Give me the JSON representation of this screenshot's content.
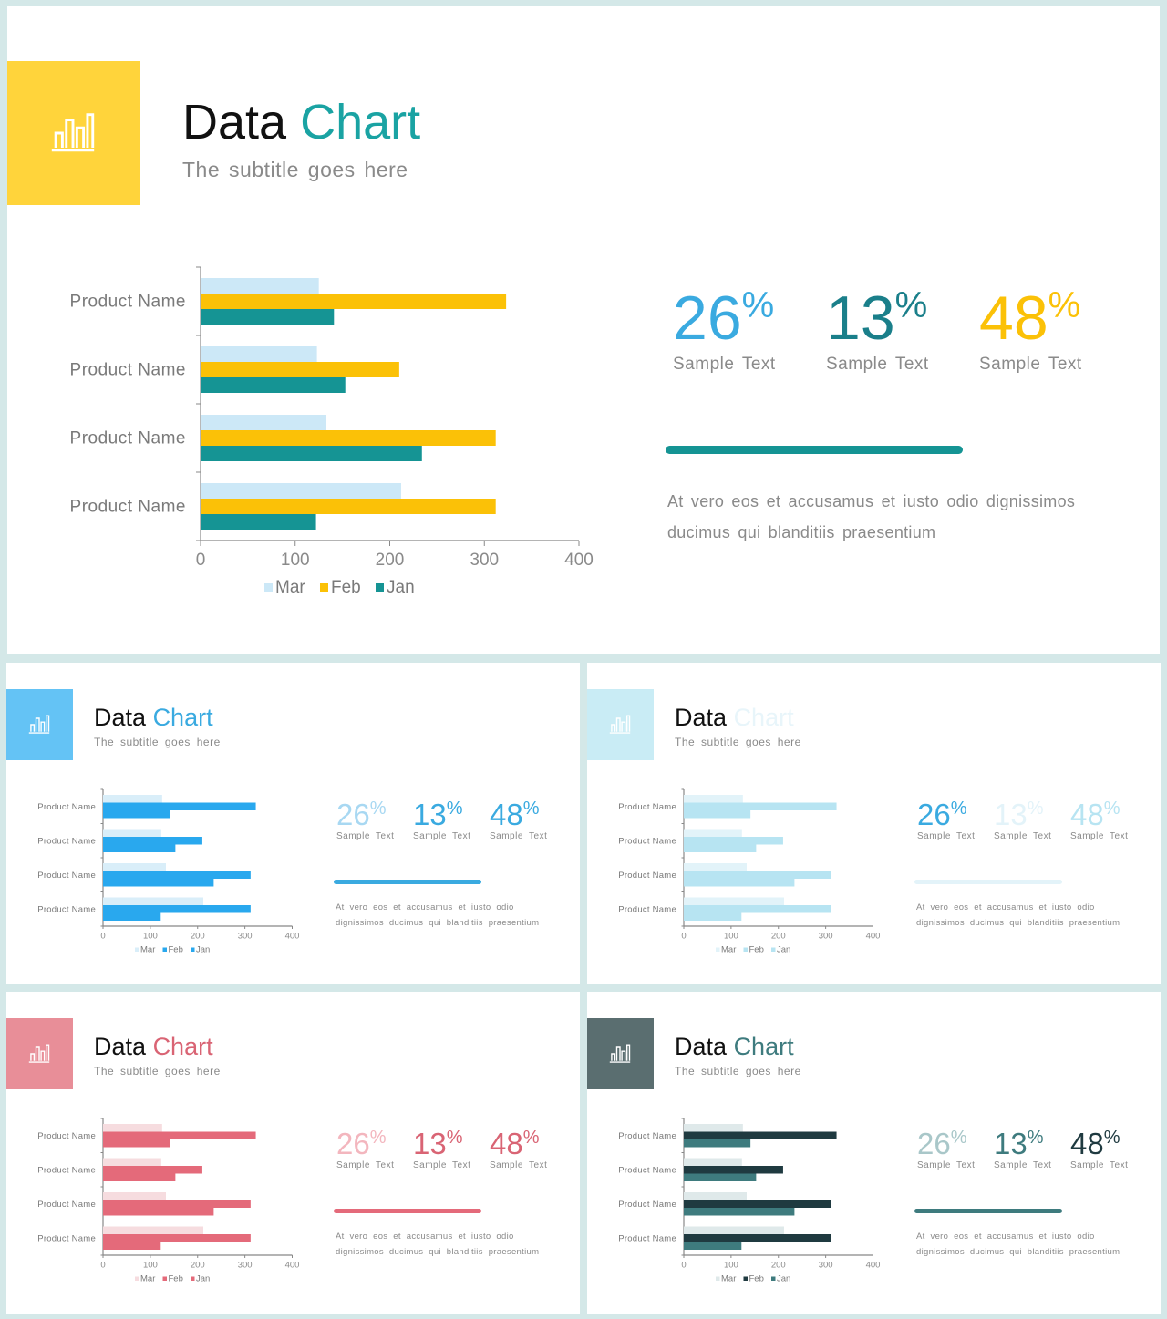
{
  "slides": [
    {
      "title_part1": "Data",
      "title_part2": "Chart",
      "subtitle": "The subtitle goes here",
      "icon": "bar-chart-icon",
      "theme": {
        "box": "#ffd43b",
        "title2": "#1aa3a3",
        "bar_mar": "#cce8f7",
        "bar_feb": "#fbc107",
        "bar_jan": "#159494",
        "stat1": "#3aaae0",
        "stat2": "#1a7f8a",
        "stat3": "#fbc107",
        "line": "#159494"
      },
      "stats": [
        {
          "value": "26",
          "unit": "%",
          "label": "Sample Text"
        },
        {
          "value": "13",
          "unit": "%",
          "label": "Sample Text"
        },
        {
          "value": "48",
          "unit": "%",
          "label": "Sample Text"
        }
      ],
      "paragraph": "At vero eos et accusamus et iusto odio dignissimos ducimus qui blanditiis praesentium"
    },
    {
      "title_part1": "Data",
      "title_part2": "Chart",
      "subtitle": "The subtitle goes here",
      "icon": "bar-chart-icon",
      "theme": {
        "box": "#64c3f5",
        "title2": "#3aaae0",
        "bar_mar": "#d9eef9",
        "bar_feb": "#29a8ee",
        "bar_jan": "#29a8ee",
        "stat1": "#a8d8f2",
        "stat2": "#3aaae0",
        "stat3": "#3aaae0",
        "line": "#3aaae0"
      },
      "stats": [
        {
          "value": "26",
          "unit": "%",
          "label": "Sample Text"
        },
        {
          "value": "13",
          "unit": "%",
          "label": "Sample Text"
        },
        {
          "value": "48",
          "unit": "%",
          "label": "Sample Text"
        }
      ],
      "paragraph": "At vero eos et accusamus et iusto odio dignissimos ducimus qui blanditiis praesentium"
    },
    {
      "title_part1": "Data",
      "title_part2": "Chart",
      "subtitle": "The subtitle goes here",
      "icon": "bar-chart-icon",
      "theme": {
        "box": "#c9ecf5",
        "title2": "#e8f5fa",
        "bar_mar": "#e2f3f9",
        "bar_feb": "#b7e4f2",
        "bar_jan": "#b7e4f2",
        "stat1": "#3aaae0",
        "stat2": "#e3f3f9",
        "stat3": "#b7e4f2",
        "line": "#e3f3f9"
      },
      "stats": [
        {
          "value": "26",
          "unit": "%",
          "label": "Sample Text"
        },
        {
          "value": "13",
          "unit": "%",
          "label": "Sample Text"
        },
        {
          "value": "48",
          "unit": "%",
          "label": "Sample Text"
        }
      ],
      "paragraph": "At vero eos et accusamus et iusto odio dignissimos ducimus qui blanditiis praesentium"
    },
    {
      "title_part1": "Data",
      "title_part2": "Chart",
      "subtitle": "The subtitle goes here",
      "icon": "bar-chart-icon",
      "theme": {
        "box": "#e88e98",
        "title2": "#d96474",
        "bar_mar": "#f6dcdf",
        "bar_feb": "#e46a7a",
        "bar_jan": "#e46a7a",
        "stat1": "#f3b6be",
        "stat2": "#d96474",
        "stat3": "#d96474",
        "line": "#e46a7a"
      },
      "stats": [
        {
          "value": "26",
          "unit": "%",
          "label": "Sample Text"
        },
        {
          "value": "13",
          "unit": "%",
          "label": "Sample Text"
        },
        {
          "value": "48",
          "unit": "%",
          "label": "Sample Text"
        }
      ],
      "paragraph": "At vero eos et accusamus et iusto odio dignissimos ducimus qui blanditiis praesentium"
    },
    {
      "title_part1": "Data",
      "title_part2": "Chart",
      "subtitle": "The subtitle goes here",
      "icon": "bar-chart-icon",
      "theme": {
        "box": "#5a6e70",
        "title2": "#3e7b7e",
        "bar_mar": "#dfe9ea",
        "bar_feb": "#1f3a40",
        "bar_jan": "#3e7b7e",
        "stat1": "#a9c7c9",
        "stat2": "#3e7b7e",
        "stat3": "#1f3a40",
        "line": "#3e7b7e"
      },
      "stats": [
        {
          "value": "26",
          "unit": "%",
          "label": "Sample Text"
        },
        {
          "value": "13",
          "unit": "%",
          "label": "Sample Text"
        },
        {
          "value": "48",
          "unit": "%",
          "label": "Sample Text"
        }
      ],
      "paragraph": "At vero eos et accusamus et iusto odio dignissimos ducimus qui blanditiis praesentium"
    }
  ],
  "chart_data": {
    "type": "bar",
    "orientation": "horizontal",
    "categories": [
      "Product Name",
      "Product Name",
      "Product Name",
      "Product Name"
    ],
    "series": [
      {
        "name": "Mar",
        "values": [
          125,
          123,
          133,
          212
        ]
      },
      {
        "name": "Feb",
        "values": [
          323,
          210,
          312,
          312
        ]
      },
      {
        "name": "Jan",
        "values": [
          141,
          153,
          234,
          122
        ]
      }
    ],
    "xlim": [
      0,
      400
    ],
    "xticks": [
      "0",
      "100",
      "200",
      "300",
      "400"
    ],
    "legend_position": "bottom",
    "grid": false,
    "title": "",
    "xlabel": "",
    "ylabel": ""
  }
}
